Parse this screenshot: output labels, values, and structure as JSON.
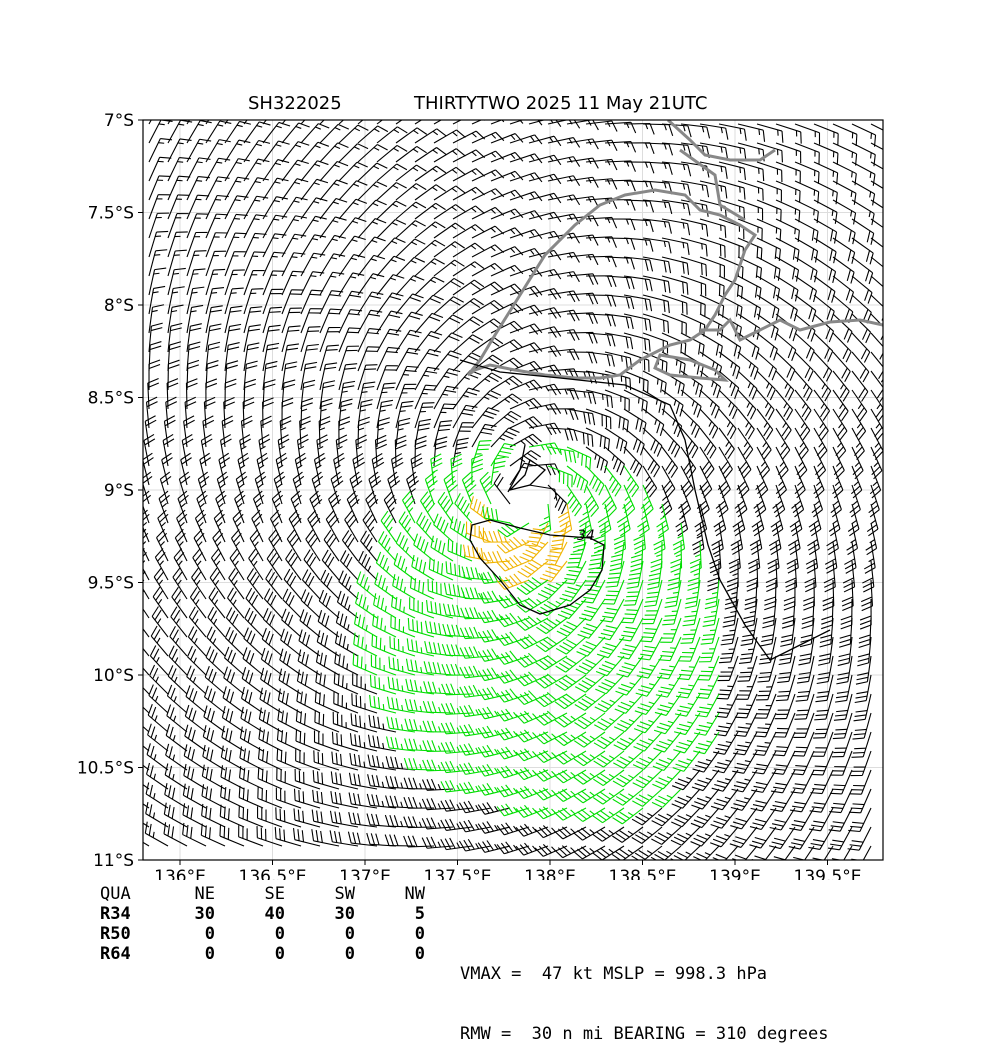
{
  "title": {
    "storm_id": "SH322025",
    "storm_name_time": "THIRTYTWO 2025 11 May 21UTC"
  },
  "map": {
    "lon_range": [
      135.8,
      139.8
    ],
    "lat_range": [
      -11.0,
      -7.0
    ],
    "lon_ticks": [
      136.0,
      136.5,
      137.0,
      137.5,
      138.0,
      138.5,
      139.0,
      139.5
    ],
    "lon_tick_labels": [
      "136°E",
      "136.5°E",
      "137°E",
      "137.5°E",
      "138°E",
      "138.5°E",
      "139°E",
      "139.5°E"
    ],
    "lat_ticks": [
      -7.0,
      -7.5,
      -8.0,
      -8.5,
      -9.0,
      -9.5,
      -10.0,
      -10.5,
      -11.0
    ],
    "lat_tick_labels": [
      "7°S",
      "7.5°S",
      "8°S",
      "8.5°S",
      "9°S",
      "9.5°S",
      "10°S",
      "10.5°S",
      "11°S"
    ],
    "grid": true,
    "contour_label": "34",
    "colors": {
      "below_34kt": "#000000",
      "gale_34kt": "#00dd00",
      "storm_50kt": "#f0b400",
      "coastline": "#888888",
      "contour": "#000000"
    },
    "wind_field": {
      "center_lon": 137.85,
      "center_lat": -9.05,
      "rmw_nmi": 30,
      "vmax_kt": 47
    }
  },
  "stats": {
    "header": [
      "QUA",
      "NE",
      "SE",
      "SW",
      "NW"
    ],
    "rows": [
      {
        "label": "R34",
        "values": [
          "30",
          "40",
          "30",
          "5"
        ]
      },
      {
        "label": "R50",
        "values": [
          "0",
          "0",
          "0",
          "0"
        ]
      },
      {
        "label": "R64",
        "values": [
          "0",
          "0",
          "0",
          "0"
        ]
      }
    ]
  },
  "summary": {
    "line1": "VMAX =  47 kt MSLP = 998.3 hPa",
    "line2": "RMW =  30 n mi BEARING = 310 degrees"
  }
}
